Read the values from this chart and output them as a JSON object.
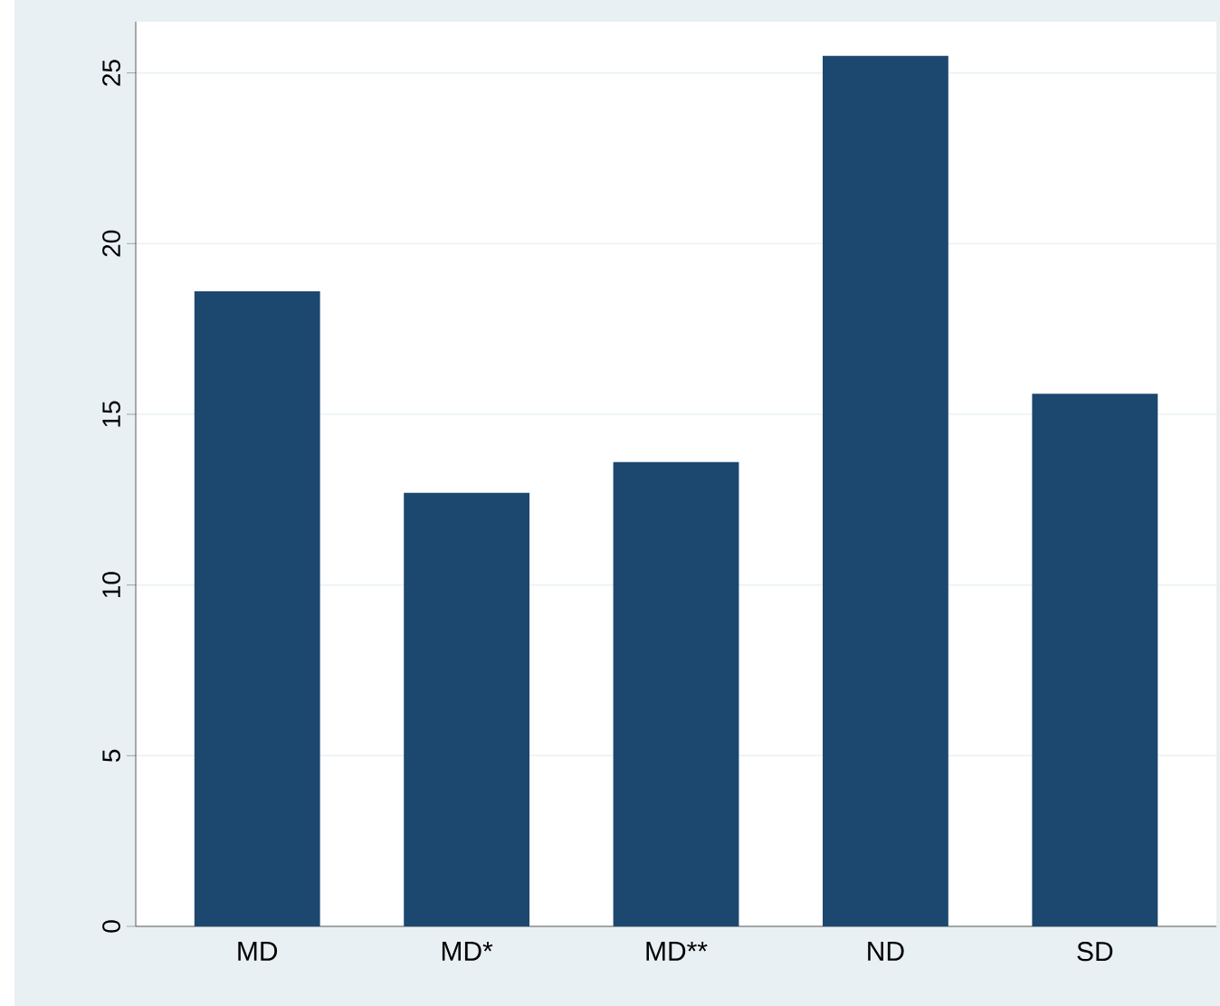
{
  "chart_data": {
    "type": "bar",
    "categories": [
      "MD",
      "MD*",
      "MD**",
      "ND",
      "SD"
    ],
    "values": [
      18.6,
      12.7,
      13.6,
      25.5,
      15.6
    ],
    "color": "#1c4870",
    "ylim": [
      0,
      26.5
    ],
    "yticks": [
      0,
      5,
      10,
      15,
      20,
      25
    ],
    "grid": "y"
  }
}
